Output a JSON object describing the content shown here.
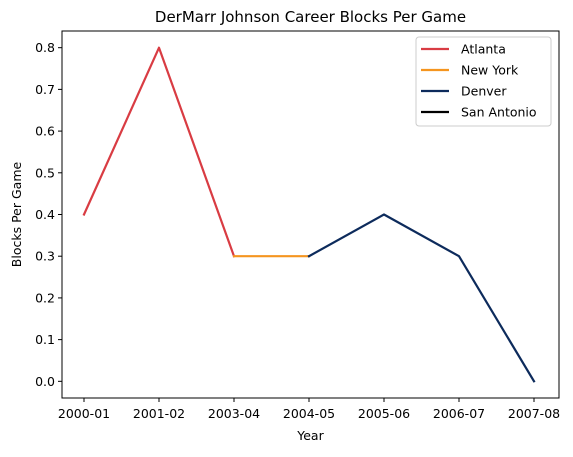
{
  "chart_data": {
    "type": "line",
    "title": "DerMarr Johnson Career Blocks Per Game",
    "xlabel": "Year",
    "ylabel": "Blocks Per Game",
    "categories": [
      "2000-01",
      "2001-02",
      "2003-04",
      "2004-05",
      "2005-06",
      "2006-07",
      "2007-08"
    ],
    "ylim": [
      -0.04,
      0.84
    ],
    "yticks": [
      "0.0",
      "0.1",
      "0.2",
      "0.3",
      "0.4",
      "0.5",
      "0.6",
      "0.7",
      "0.8"
    ],
    "grid": false,
    "legend_position": "top-right",
    "series": [
      {
        "name": "Atlanta",
        "color": "#d93c43",
        "points": [
          [
            "2000-01",
            0.4
          ],
          [
            "2001-02",
            0.8
          ],
          [
            "2003-04",
            0.3
          ]
        ]
      },
      {
        "name": "New York",
        "color": "#f5951f",
        "points": [
          [
            "2003-04",
            0.3
          ],
          [
            "2004-05",
            0.3
          ]
        ]
      },
      {
        "name": "Denver",
        "color": "#0d2b5c",
        "points": [
          [
            "2004-05",
            0.3
          ],
          [
            "2005-06",
            0.4
          ],
          [
            "2006-07",
            0.3
          ],
          [
            "2007-08",
            0.0
          ]
        ]
      },
      {
        "name": "San Antonio",
        "color": "#000000",
        "points": []
      }
    ]
  }
}
